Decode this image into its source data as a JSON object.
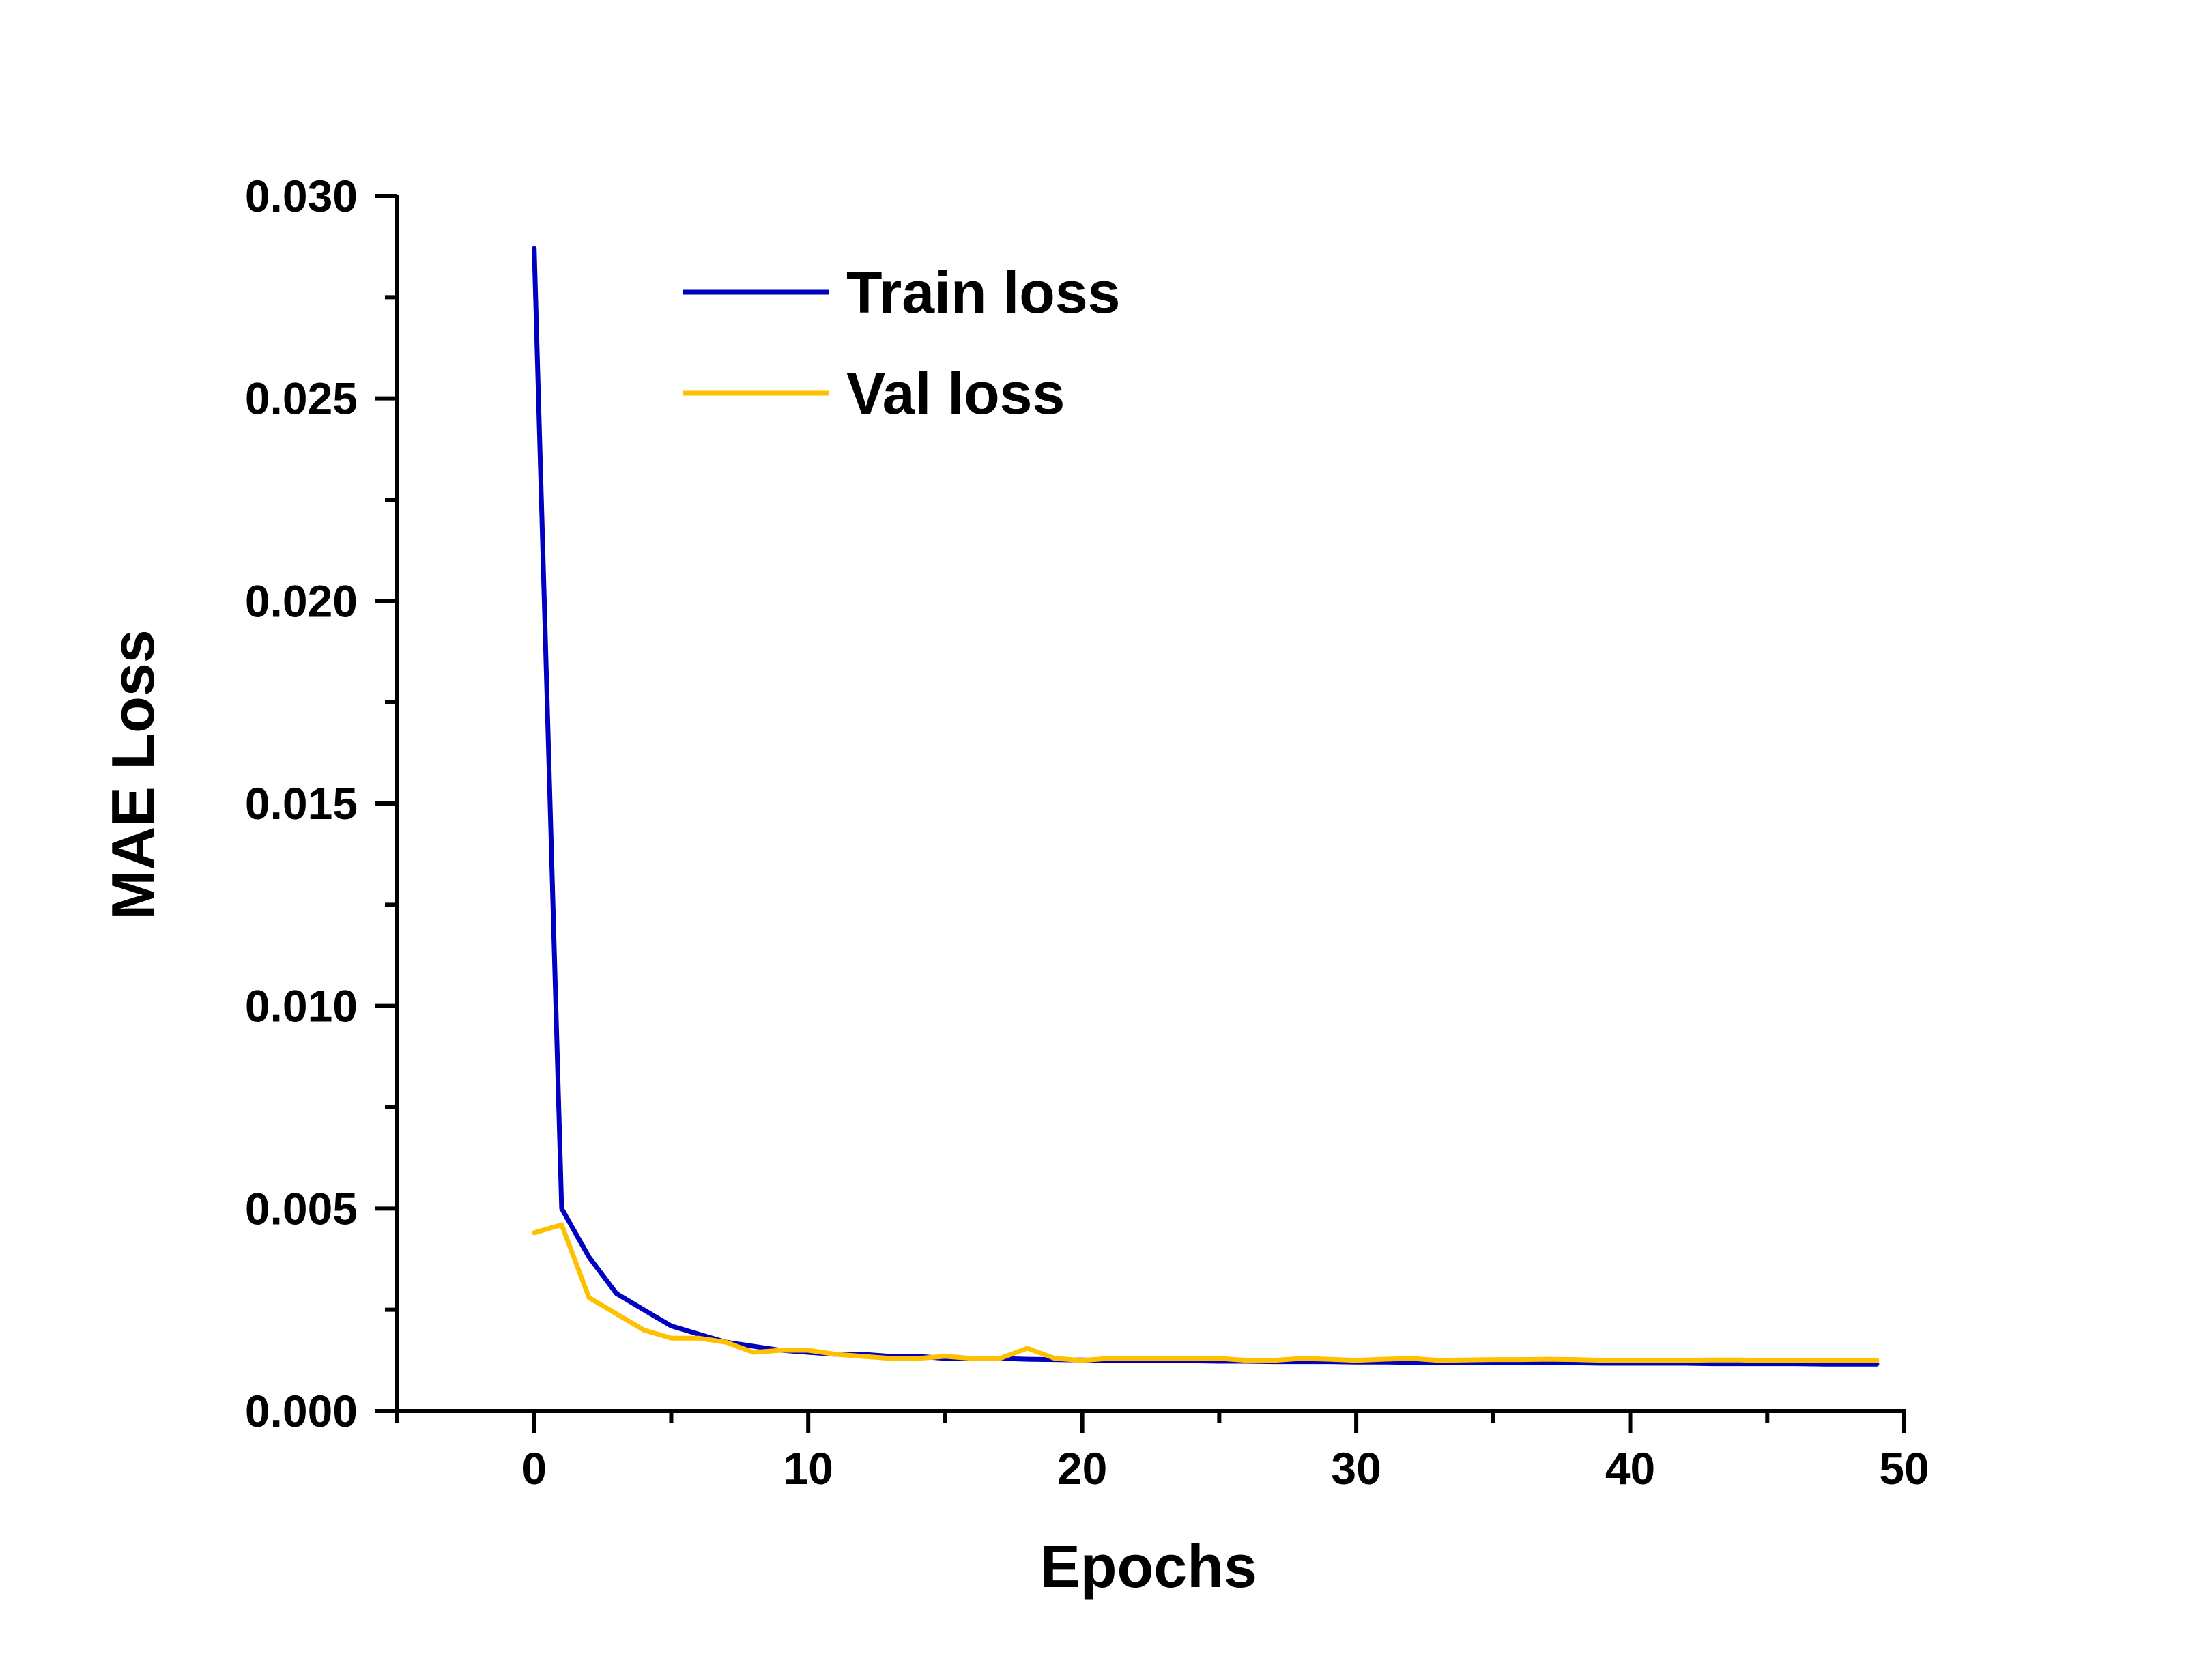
{
  "chart_data": {
    "type": "line",
    "title": "",
    "xlabel": "Epochs",
    "ylabel": "MAE Loss",
    "xlim": [
      -5,
      50
    ],
    "ylim": [
      0,
      0.03
    ],
    "x_ticks": [
      0,
      10,
      20,
      30,
      40,
      50
    ],
    "x_tick_labels": [
      "0",
      "10",
      "20",
      "30",
      "40",
      "50"
    ],
    "y_ticks": [
      0,
      0.005,
      0.01,
      0.015,
      0.02,
      0.025,
      0.03
    ],
    "y_tick_labels": [
      "0.000",
      "0.005",
      "0.010",
      "0.015",
      "0.020",
      "0.025",
      "0.030"
    ],
    "grid": false,
    "legend_position": "top-left",
    "x": [
      0,
      1,
      2,
      3,
      4,
      5,
      6,
      7,
      8,
      9,
      10,
      11,
      12,
      13,
      14,
      15,
      16,
      17,
      18,
      19,
      20,
      21,
      22,
      23,
      24,
      25,
      26,
      27,
      28,
      29,
      30,
      31,
      32,
      33,
      34,
      35,
      36,
      37,
      38,
      39,
      40,
      41,
      42,
      43,
      44,
      45,
      46,
      47,
      48,
      49
    ],
    "series": [
      {
        "name": "Train loss",
        "color": "#0000c0",
        "values": [
          0.0287,
          0.005,
          0.0038,
          0.0029,
          0.0025,
          0.0021,
          0.0019,
          0.0017,
          0.0016,
          0.0015,
          0.00145,
          0.0014,
          0.0014,
          0.00135,
          0.00135,
          0.0013,
          0.0013,
          0.0013,
          0.00128,
          0.00127,
          0.00126,
          0.00125,
          0.00125,
          0.00124,
          0.00124,
          0.00123,
          0.00123,
          0.00122,
          0.00122,
          0.00122,
          0.00121,
          0.00121,
          0.0012,
          0.0012,
          0.0012,
          0.0012,
          0.00119,
          0.00119,
          0.00119,
          0.00118,
          0.00118,
          0.00118,
          0.00118,
          0.00117,
          0.00117,
          0.00117,
          0.00117,
          0.00116,
          0.00116,
          0.00116
        ]
      },
      {
        "name": "Val loss",
        "color": "#ffc000",
        "values": [
          0.0044,
          0.0046,
          0.0028,
          0.0024,
          0.002,
          0.0018,
          0.0018,
          0.0017,
          0.00145,
          0.0015,
          0.0015,
          0.0014,
          0.00135,
          0.0013,
          0.0013,
          0.00135,
          0.0013,
          0.0013,
          0.00155,
          0.0013,
          0.00125,
          0.0013,
          0.0013,
          0.0013,
          0.0013,
          0.0013,
          0.00125,
          0.00125,
          0.0013,
          0.00128,
          0.00125,
          0.00128,
          0.0013,
          0.00125,
          0.00126,
          0.00127,
          0.00127,
          0.00128,
          0.00127,
          0.00125,
          0.00125,
          0.00125,
          0.00125,
          0.00126,
          0.00126,
          0.00124,
          0.00124,
          0.00125,
          0.00124,
          0.00125
        ]
      }
    ]
  }
}
